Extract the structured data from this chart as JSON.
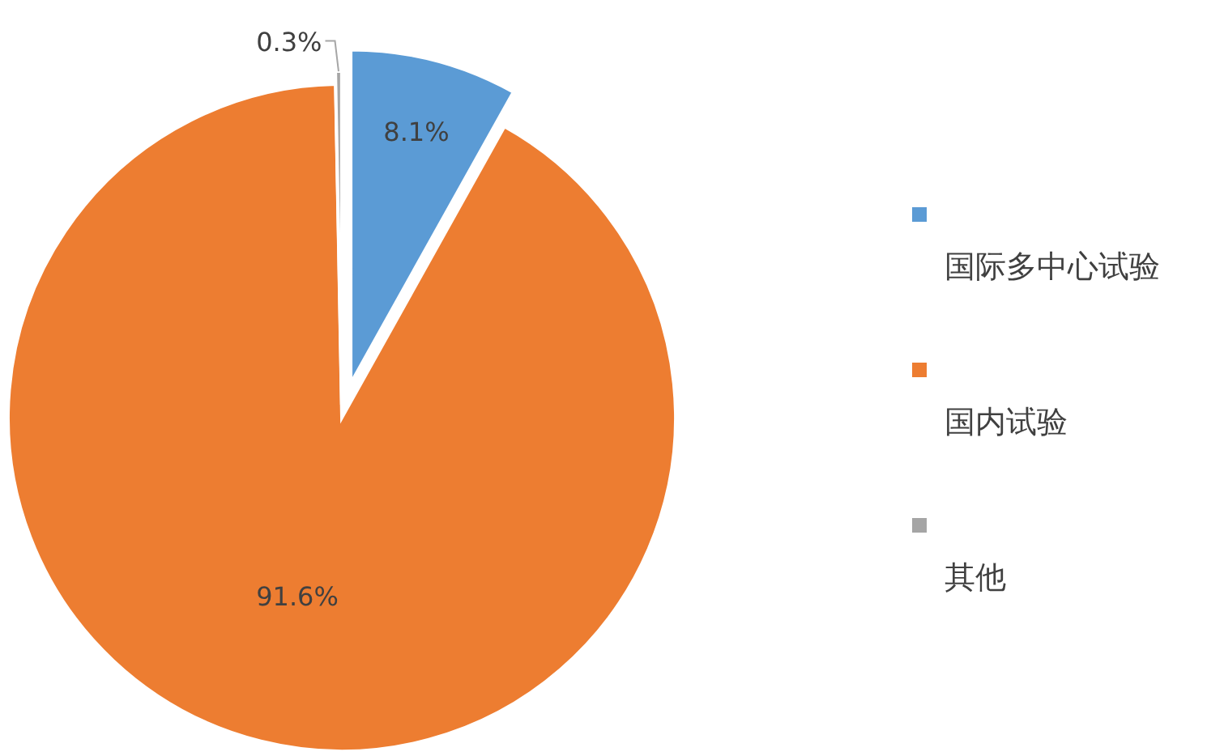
{
  "chart_data": {
    "type": "pie",
    "categories": [
      "国际多中心试验",
      "国内试验",
      "其他"
    ],
    "values": [
      8.1,
      91.6,
      0.3
    ],
    "colors": [
      "#5b9bd5",
      "#ed7d31",
      "#a5a5a5"
    ],
    "value_labels": [
      "8.1%",
      "91.6%",
      "0.3%"
    ],
    "legend": "right"
  }
}
